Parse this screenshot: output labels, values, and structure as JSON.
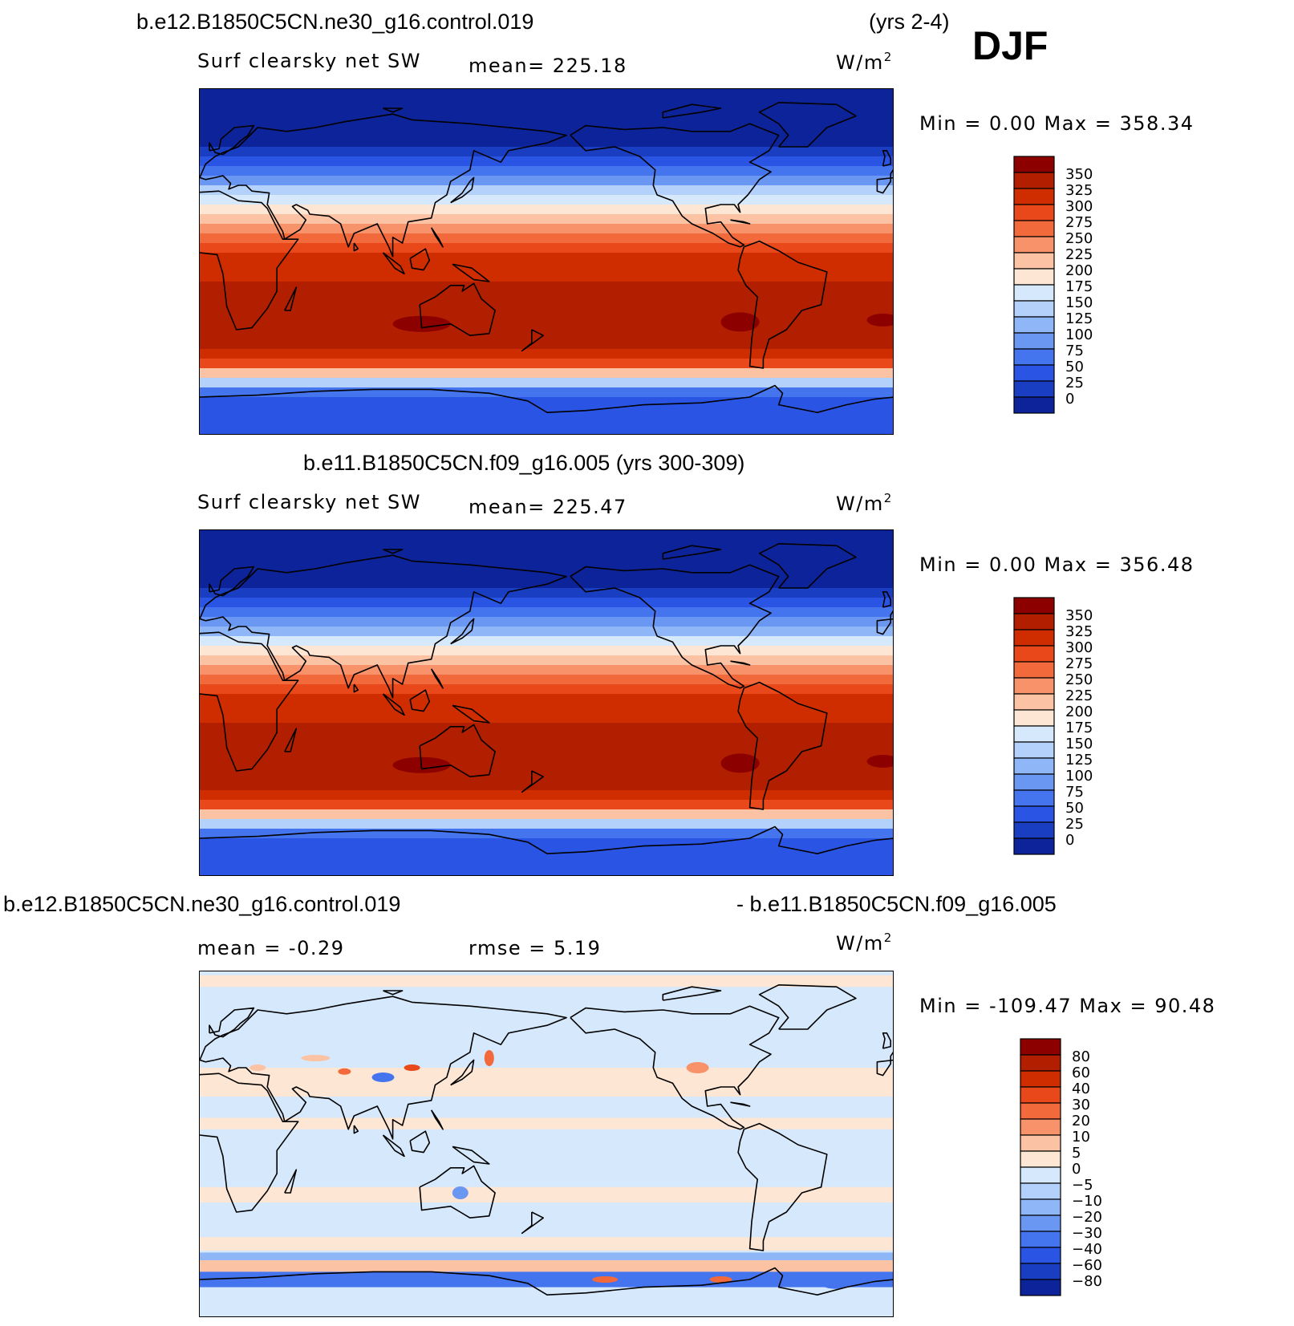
{
  "season": "DJF",
  "panels": [
    {
      "case_title": "b.e12.B1850C5CN.ne30_g16.control.019",
      "years": "(yrs 2-4)",
      "left_label": "Surf clearsky net SW",
      "mid_label": "mean= 225.18",
      "units_base": "W/m",
      "units_exp": "2",
      "minmax": "Min =    0.00 Max = 358.34",
      "cb_labels": [
        "350",
        "325",
        "300",
        "275",
        "250",
        "225",
        "200",
        "175",
        "150",
        "125",
        "100",
        "75",
        "50",
        "25",
        "0"
      ],
      "cb_colors": [
        "#8c0000",
        "#b21e00",
        "#cf2d00",
        "#e8481a",
        "#f26a3c",
        "#f7926a",
        "#fbc2a3",
        "#fde6d3",
        "#d6e8fb",
        "#b3d1fa",
        "#8fb6f7",
        "#6a97f2",
        "#4575ee",
        "#2a55e4",
        "#1a3ec2",
        "#0d2399"
      ],
      "chart_data": {
        "type": "heatmap",
        "title": "b.e12.B1850C5CN.ne30_g16.control.019 (yrs 2-4)",
        "variable": "Surf clearsky net SW",
        "units": "W/m2",
        "mean": 225.18,
        "min": 0.0,
        "max": 358.34,
        "levels": [
          0,
          25,
          50,
          75,
          100,
          125,
          150,
          175,
          200,
          225,
          250,
          275,
          300,
          325,
          350
        ],
        "colorscale": "blue-white-red",
        "pattern_note": "zonal bands: low (0-75) over Arctic/NH high latitudes in DJF, highest (325-358) over Southern Hemisphere subtropics; Antarctica low"
      }
    },
    {
      "case_title": "b.e11.B1850C5CN.f09_g16.005 (yrs 300-309)",
      "years": "",
      "left_label": "Surf clearsky net SW",
      "mid_label": "mean= 225.47",
      "units_base": "W/m",
      "units_exp": "2",
      "minmax": "Min =    0.00 Max = 356.48",
      "cb_labels": [
        "350",
        "325",
        "300",
        "275",
        "250",
        "225",
        "200",
        "175",
        "150",
        "125",
        "100",
        "75",
        "50",
        "25",
        "0"
      ],
      "cb_colors": [
        "#8c0000",
        "#b21e00",
        "#cf2d00",
        "#e8481a",
        "#f26a3c",
        "#f7926a",
        "#fbc2a3",
        "#fde6d3",
        "#d6e8fb",
        "#b3d1fa",
        "#8fb6f7",
        "#6a97f2",
        "#4575ee",
        "#2a55e4",
        "#1a3ec2",
        "#0d2399"
      ],
      "chart_data": {
        "type": "heatmap",
        "title": "b.e11.B1850C5CN.f09_g16.005 (yrs 300-309)",
        "variable": "Surf clearsky net SW",
        "units": "W/m2",
        "mean": 225.47,
        "min": 0.0,
        "max": 356.48,
        "levels": [
          0,
          25,
          50,
          75,
          100,
          125,
          150,
          175,
          200,
          225,
          250,
          275,
          300,
          325,
          350
        ],
        "colorscale": "blue-white-red"
      }
    },
    {
      "case_title_left": "b.e12.B1850C5CN.ne30_g16.control.019",
      "case_title_right": "- b.e11.B1850C5CN.f09_g16.005",
      "left_label": "mean =   -0.29",
      "mid_label": "rmse =    5.19",
      "units_base": "W/m",
      "units_exp": "2",
      "minmax": "Min = -109.47 Max =  90.48",
      "cb_labels": [
        "80",
        "60",
        "40",
        "30",
        "20",
        "10",
        "5",
        "0",
        "-5",
        "-10",
        "-20",
        "-30",
        "-40",
        "-60",
        "-80"
      ],
      "cb_colors": [
        "#8c0000",
        "#b21e00",
        "#cf2d00",
        "#e8481a",
        "#f26a3c",
        "#f7926a",
        "#fbc2a3",
        "#fde6d3",
        "#d6e8fb",
        "#b3d1fa",
        "#8fb6f7",
        "#6a97f2",
        "#4575ee",
        "#2a55e4",
        "#1a3ec2",
        "#0d2399"
      ],
      "chart_data": {
        "type": "heatmap",
        "title": "b.e12.B1850C5CN.ne30_g16.control.019 - b.e11.B1850C5CN.f09_g16.005",
        "units": "W/m2",
        "mean": -0.29,
        "rmse": 5.19,
        "min": -109.47,
        "max": 90.48,
        "levels": [
          -80,
          -60,
          -40,
          -30,
          -20,
          -10,
          -5,
          0,
          5,
          10,
          20,
          30,
          40,
          60,
          80
        ],
        "colorscale": "blue-white-red diverging"
      }
    }
  ],
  "chart_data": [
    {
      "type": "heatmap",
      "title": "b.e12.B1850C5CN.ne30_g16.control.019 (yrs 2-4)",
      "variable": "Surf clearsky net SW",
      "units": "W/m2",
      "mean": 225.18,
      "min": 0.0,
      "max": 358.34,
      "levels": [
        0,
        25,
        50,
        75,
        100,
        125,
        150,
        175,
        200,
        225,
        250,
        275,
        300,
        325,
        350
      ]
    },
    {
      "type": "heatmap",
      "title": "b.e11.B1850C5CN.f09_g16.005 (yrs 300-309)",
      "variable": "Surf clearsky net SW",
      "units": "W/m2",
      "mean": 225.47,
      "min": 0.0,
      "max": 356.48,
      "levels": [
        0,
        25,
        50,
        75,
        100,
        125,
        150,
        175,
        200,
        225,
        250,
        275,
        300,
        325,
        350
      ]
    },
    {
      "type": "heatmap",
      "title": "b.e12.B1850C5CN.ne30_g16.control.019 - b.e11.B1850C5CN.f09_g16.005",
      "units": "W/m2",
      "mean": -0.29,
      "rmse": 5.19,
      "min": -109.47,
      "max": 90.48,
      "levels": [
        -80,
        -60,
        -40,
        -30,
        -20,
        -10,
        -5,
        0,
        5,
        10,
        20,
        30,
        40,
        60,
        80
      ]
    }
  ]
}
